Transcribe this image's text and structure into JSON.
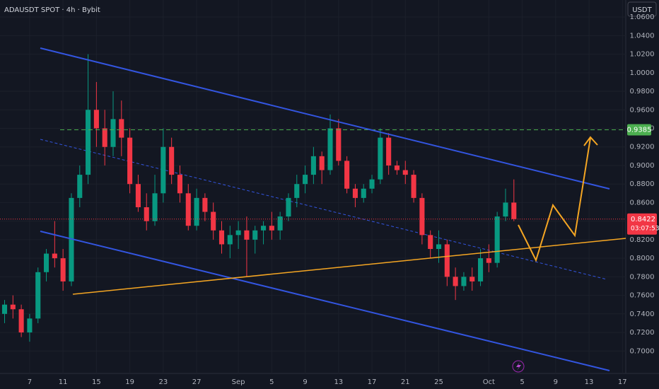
{
  "chart_data": {
    "type": "candlestick",
    "title": "ADAUSDT SPOT · 4h · Bybit",
    "currency_button": "USDT",
    "up_color": "#089981",
    "down_color": "#f23645",
    "x": [
      4,
      5,
      6,
      7,
      8,
      9,
      10,
      11,
      12,
      13,
      14,
      15,
      16,
      17,
      18,
      19,
      20,
      21,
      22,
      23,
      24,
      25,
      26,
      27,
      28,
      29,
      30,
      31,
      32,
      33,
      34,
      35,
      36,
      37,
      38,
      39,
      40,
      41,
      42,
      43,
      44,
      45,
      46,
      47,
      48,
      49,
      50,
      51,
      52,
      53,
      54,
      55,
      56,
      57,
      58,
      59,
      60,
      61,
      62,
      63,
      64,
      65
    ],
    "open": [
      0.74,
      0.75,
      0.745,
      0.72,
      0.735,
      0.785,
      0.805,
      0.8,
      0.775,
      0.865,
      0.89,
      0.96,
      0.94,
      0.92,
      0.95,
      0.93,
      0.88,
      0.855,
      0.84,
      0.87,
      0.92,
      0.89,
      0.87,
      0.835,
      0.865,
      0.85,
      0.83,
      0.815,
      0.825,
      0.83,
      0.82,
      0.83,
      0.835,
      0.83,
      0.845,
      0.865,
      0.88,
      0.89,
      0.91,
      0.895,
      0.94,
      0.905,
      0.875,
      0.865,
      0.875,
      0.885,
      0.93,
      0.9,
      0.895,
      0.89,
      0.865,
      0.825,
      0.81,
      0.815,
      0.78,
      0.77,
      0.78,
      0.775,
      0.8,
      0.795,
      0.845,
      0.86
    ],
    "high": [
      0.755,
      0.76,
      0.75,
      0.74,
      0.79,
      0.81,
      0.84,
      0.81,
      0.87,
      0.9,
      1.02,
      0.99,
      0.96,
      0.98,
      0.97,
      0.94,
      0.89,
      0.87,
      0.89,
      0.94,
      0.93,
      0.9,
      0.88,
      0.875,
      0.87,
      0.86,
      0.84,
      0.835,
      0.84,
      0.845,
      0.835,
      0.84,
      0.85,
      0.85,
      0.87,
      0.89,
      0.9,
      0.92,
      0.915,
      0.955,
      0.95,
      0.91,
      0.88,
      0.88,
      0.89,
      0.94,
      0.935,
      0.905,
      0.905,
      0.895,
      0.87,
      0.83,
      0.83,
      0.82,
      0.79,
      0.785,
      0.79,
      0.81,
      0.815,
      0.85,
      0.875,
      0.885
    ],
    "low": [
      0.73,
      0.735,
      0.715,
      0.71,
      0.73,
      0.775,
      0.79,
      0.765,
      0.77,
      0.855,
      0.88,
      0.92,
      0.9,
      0.91,
      0.91,
      0.87,
      0.85,
      0.83,
      0.835,
      0.86,
      0.88,
      0.86,
      0.83,
      0.83,
      0.84,
      0.82,
      0.805,
      0.8,
      0.81,
      0.78,
      0.805,
      0.815,
      0.82,
      0.82,
      0.84,
      0.855,
      0.87,
      0.88,
      0.88,
      0.89,
      0.9,
      0.87,
      0.855,
      0.86,
      0.87,
      0.88,
      0.89,
      0.89,
      0.88,
      0.86,
      0.815,
      0.8,
      0.795,
      0.77,
      0.755,
      0.765,
      0.765,
      0.77,
      0.785,
      0.79,
      0.84,
      0.84
    ],
    "close": [
      0.75,
      0.745,
      0.72,
      0.735,
      0.785,
      0.805,
      0.8,
      0.775,
      0.865,
      0.89,
      0.96,
      0.94,
      0.92,
      0.95,
      0.93,
      0.88,
      0.855,
      0.84,
      0.87,
      0.92,
      0.89,
      0.87,
      0.835,
      0.865,
      0.85,
      0.83,
      0.815,
      0.825,
      0.83,
      0.82,
      0.83,
      0.835,
      0.83,
      0.845,
      0.865,
      0.88,
      0.89,
      0.91,
      0.895,
      0.94,
      0.905,
      0.875,
      0.865,
      0.875,
      0.885,
      0.93,
      0.9,
      0.895,
      0.89,
      0.865,
      0.825,
      0.81,
      0.815,
      0.78,
      0.77,
      0.78,
      0.775,
      0.8,
      0.795,
      0.845,
      0.86,
      0.8422
    ],
    "xlim": [
      3.45,
      78.4
    ],
    "xticks": [
      {
        "value": 7,
        "label": "7"
      },
      {
        "value": 11,
        "label": "11"
      },
      {
        "value": 15,
        "label": "15"
      },
      {
        "value": 19,
        "label": "19"
      },
      {
        "value": 23,
        "label": "23"
      },
      {
        "value": 27,
        "label": "27"
      },
      {
        "value": 32,
        "label": "Sep"
      },
      {
        "value": 36,
        "label": "5"
      },
      {
        "value": 40,
        "label": "9"
      },
      {
        "value": 44,
        "label": "13"
      },
      {
        "value": 48,
        "label": "17"
      },
      {
        "value": 52,
        "label": "21"
      },
      {
        "value": 56,
        "label": "25"
      },
      {
        "value": 62,
        "label": "Oct"
      },
      {
        "value": 66,
        "label": "5"
      },
      {
        "value": 70,
        "label": "9"
      },
      {
        "value": 74,
        "label": "13"
      },
      {
        "value": 78,
        "label": "17"
      }
    ],
    "ylim": [
      0.6758,
      1.0784
    ],
    "yticks": [
      {
        "value": 0.7,
        "label": "0.7000"
      },
      {
        "value": 0.72,
        "label": "0.7200"
      },
      {
        "value": 0.74,
        "label": "0.7400"
      },
      {
        "value": 0.76,
        "label": "0.7600"
      },
      {
        "value": 0.78,
        "label": "0.7800"
      },
      {
        "value": 0.8,
        "label": "0.8000"
      },
      {
        "value": 0.82,
        "label": "0.8200"
      },
      {
        "value": 0.84,
        "label": "0.8400"
      },
      {
        "value": 0.86,
        "label": "0.8600"
      },
      {
        "value": 0.88,
        "label": "0.8800"
      },
      {
        "value": 0.9,
        "label": "0.9000"
      },
      {
        "value": 0.92,
        "label": "0.9200"
      },
      {
        "value": 0.94,
        "label": "0.9400"
      },
      {
        "value": 0.96,
        "label": "0.9600"
      },
      {
        "value": 0.98,
        "label": "0.9800"
      },
      {
        "value": 1.0,
        "label": "1.0000"
      },
      {
        "value": 1.02,
        "label": "1.0200"
      },
      {
        "value": 1.04,
        "label": "1.0400"
      },
      {
        "value": 1.06,
        "label": "1.0600"
      }
    ],
    "target_level": {
      "value": 0.9385,
      "label": "0.9385",
      "color": "#4caf50"
    },
    "last_price": {
      "value": 0.8422,
      "label": "0.8422",
      "countdown": "03:07:53",
      "color": "#f23645"
    }
  }
}
